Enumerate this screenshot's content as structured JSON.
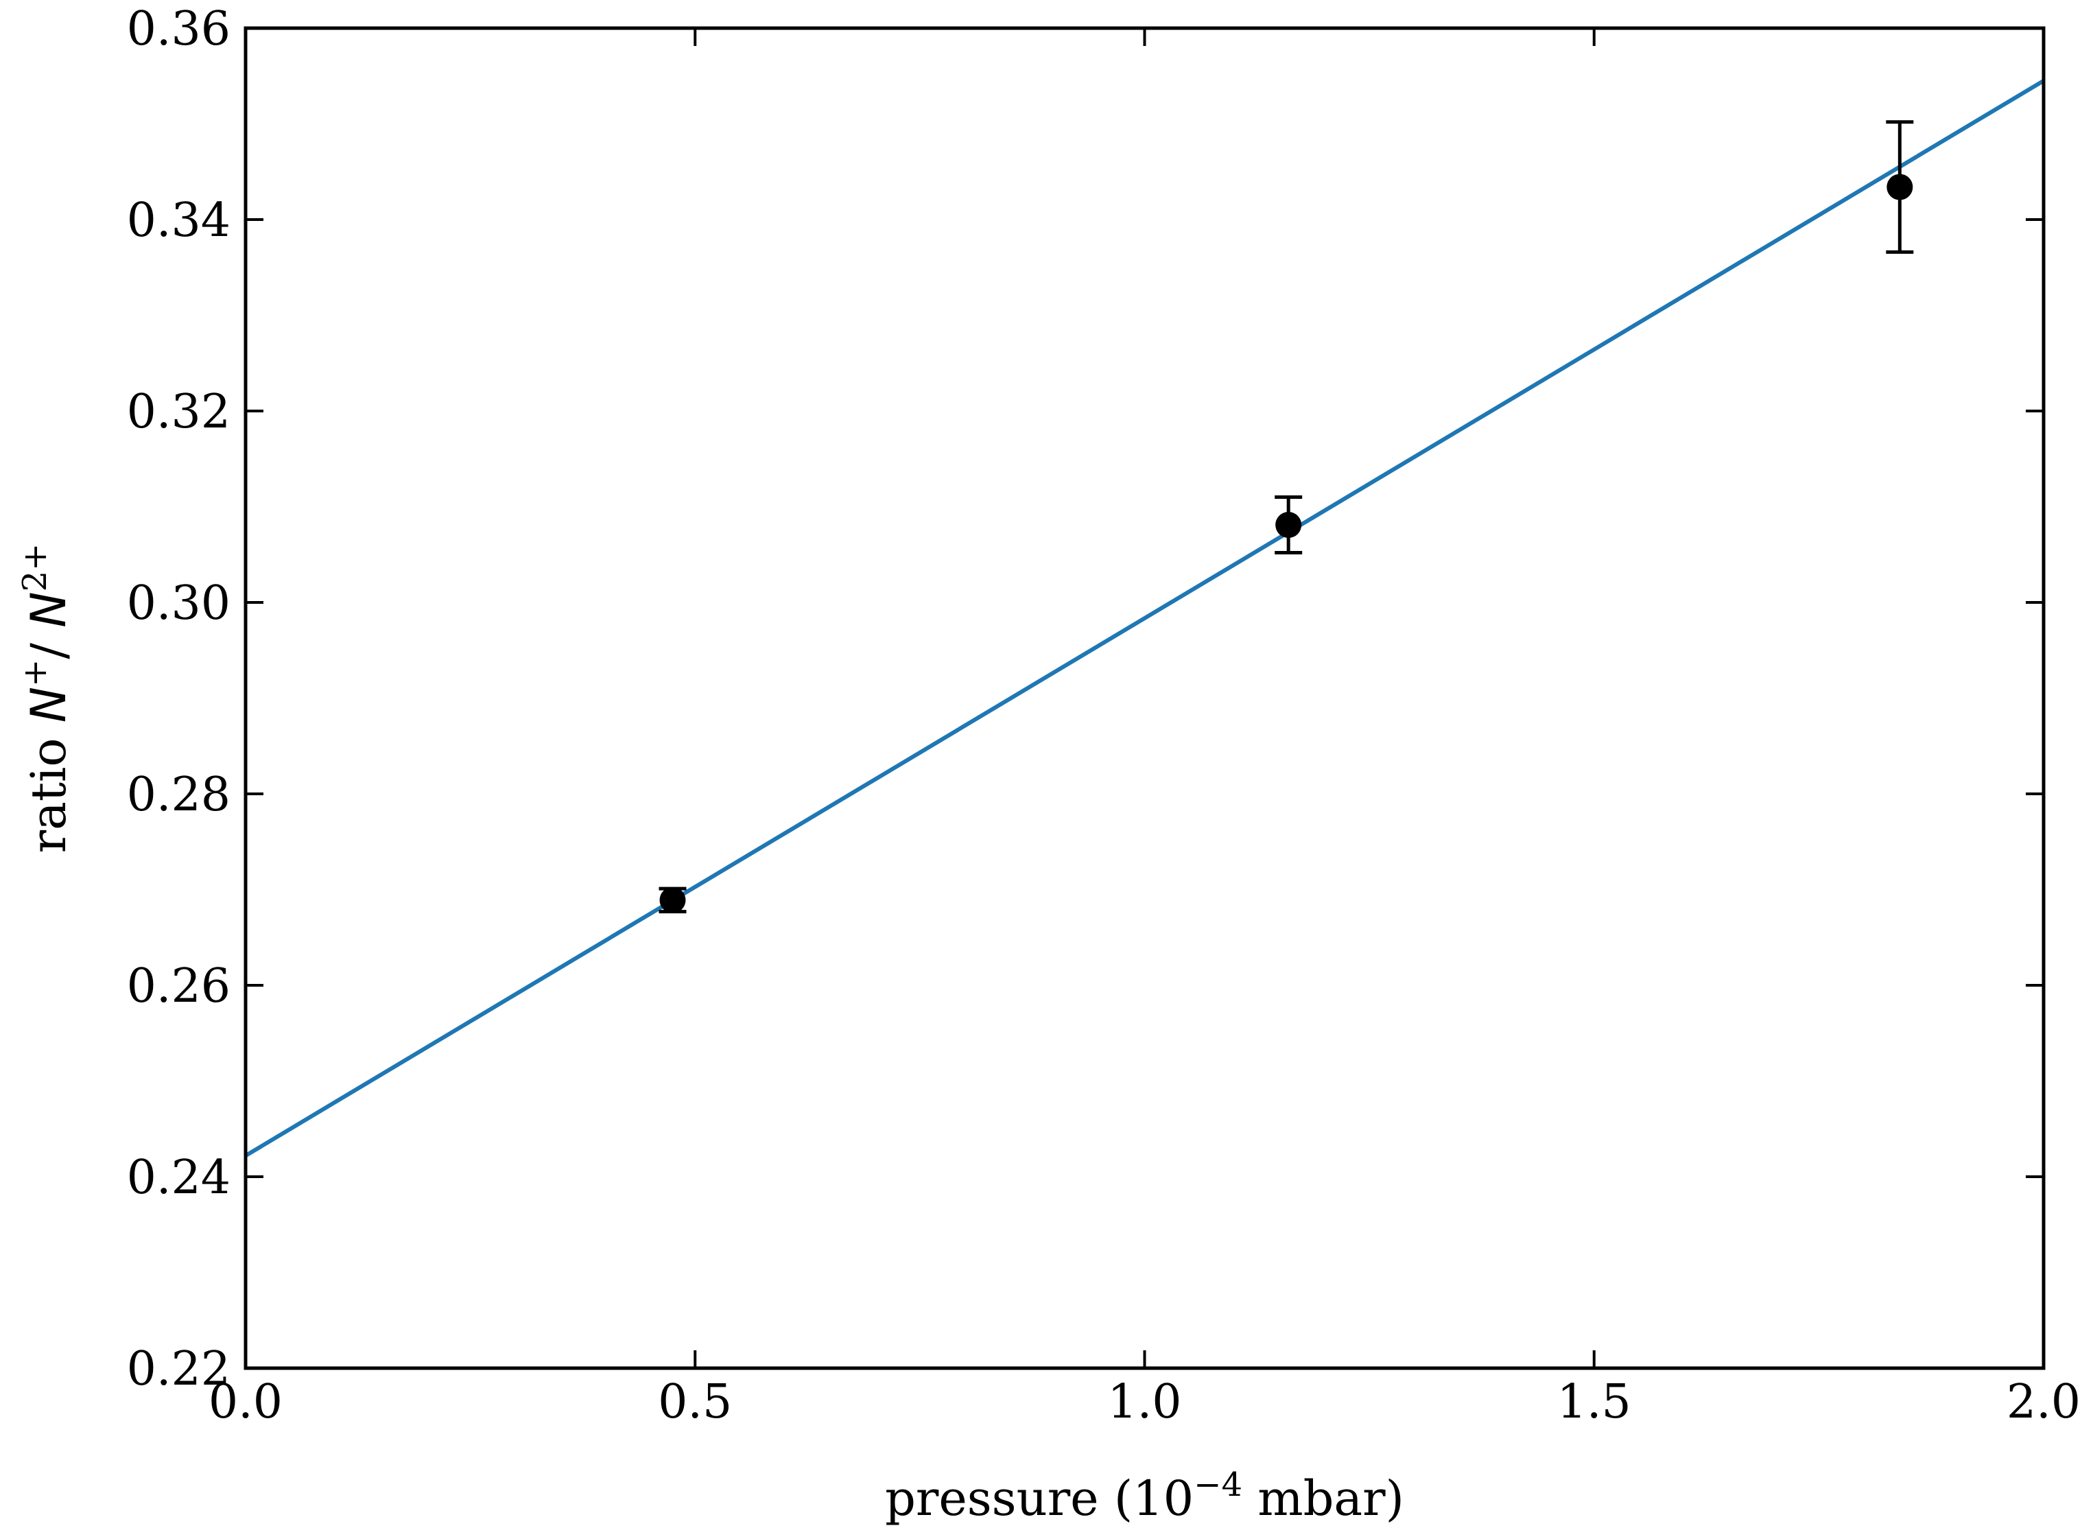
{
  "chart_data": {
    "type": "scatter",
    "title": "",
    "xlabel": {
      "text": "pressure (10",
      "sup": "−4",
      "unit": " mbar)"
    },
    "ylabel": {
      "prefix": "ratio ",
      "num_sym": "N",
      "num_sup": "+",
      "sep": "/ ",
      "den_sym": "N",
      "den_sup": "2+"
    },
    "xlim": [
      0.0,
      2.0
    ],
    "ylim": [
      0.22,
      0.36
    ],
    "x_ticks": [
      0.0,
      0.5,
      1.0,
      1.5,
      2.0
    ],
    "x_tick_labels": [
      "0.0",
      "0.5",
      "1.0",
      "1.5",
      "2.0"
    ],
    "y_ticks": [
      0.22,
      0.24,
      0.26,
      0.28,
      0.3,
      0.32,
      0.34,
      0.36
    ],
    "y_tick_labels": [
      "0.22",
      "0.24",
      "0.26",
      "0.28",
      "0.30",
      "0.32",
      "0.34",
      "0.36"
    ],
    "grid": false,
    "legend": "none",
    "series": [
      {
        "kind": "errorbar",
        "color": "#000000",
        "points": [
          {
            "x": 0.475,
            "y": 0.2689,
            "yerr": 0.0012
          },
          {
            "x": 1.16,
            "y": 0.3081,
            "yerr": 0.0029
          },
          {
            "x": 1.84,
            "y": 0.3434,
            "yerr": 0.0068
          }
        ]
      },
      {
        "kind": "fit-line",
        "color": "#1f77b4",
        "x": [
          0.0,
          2.0
        ],
        "y": [
          0.2422,
          0.3545
        ]
      }
    ]
  }
}
